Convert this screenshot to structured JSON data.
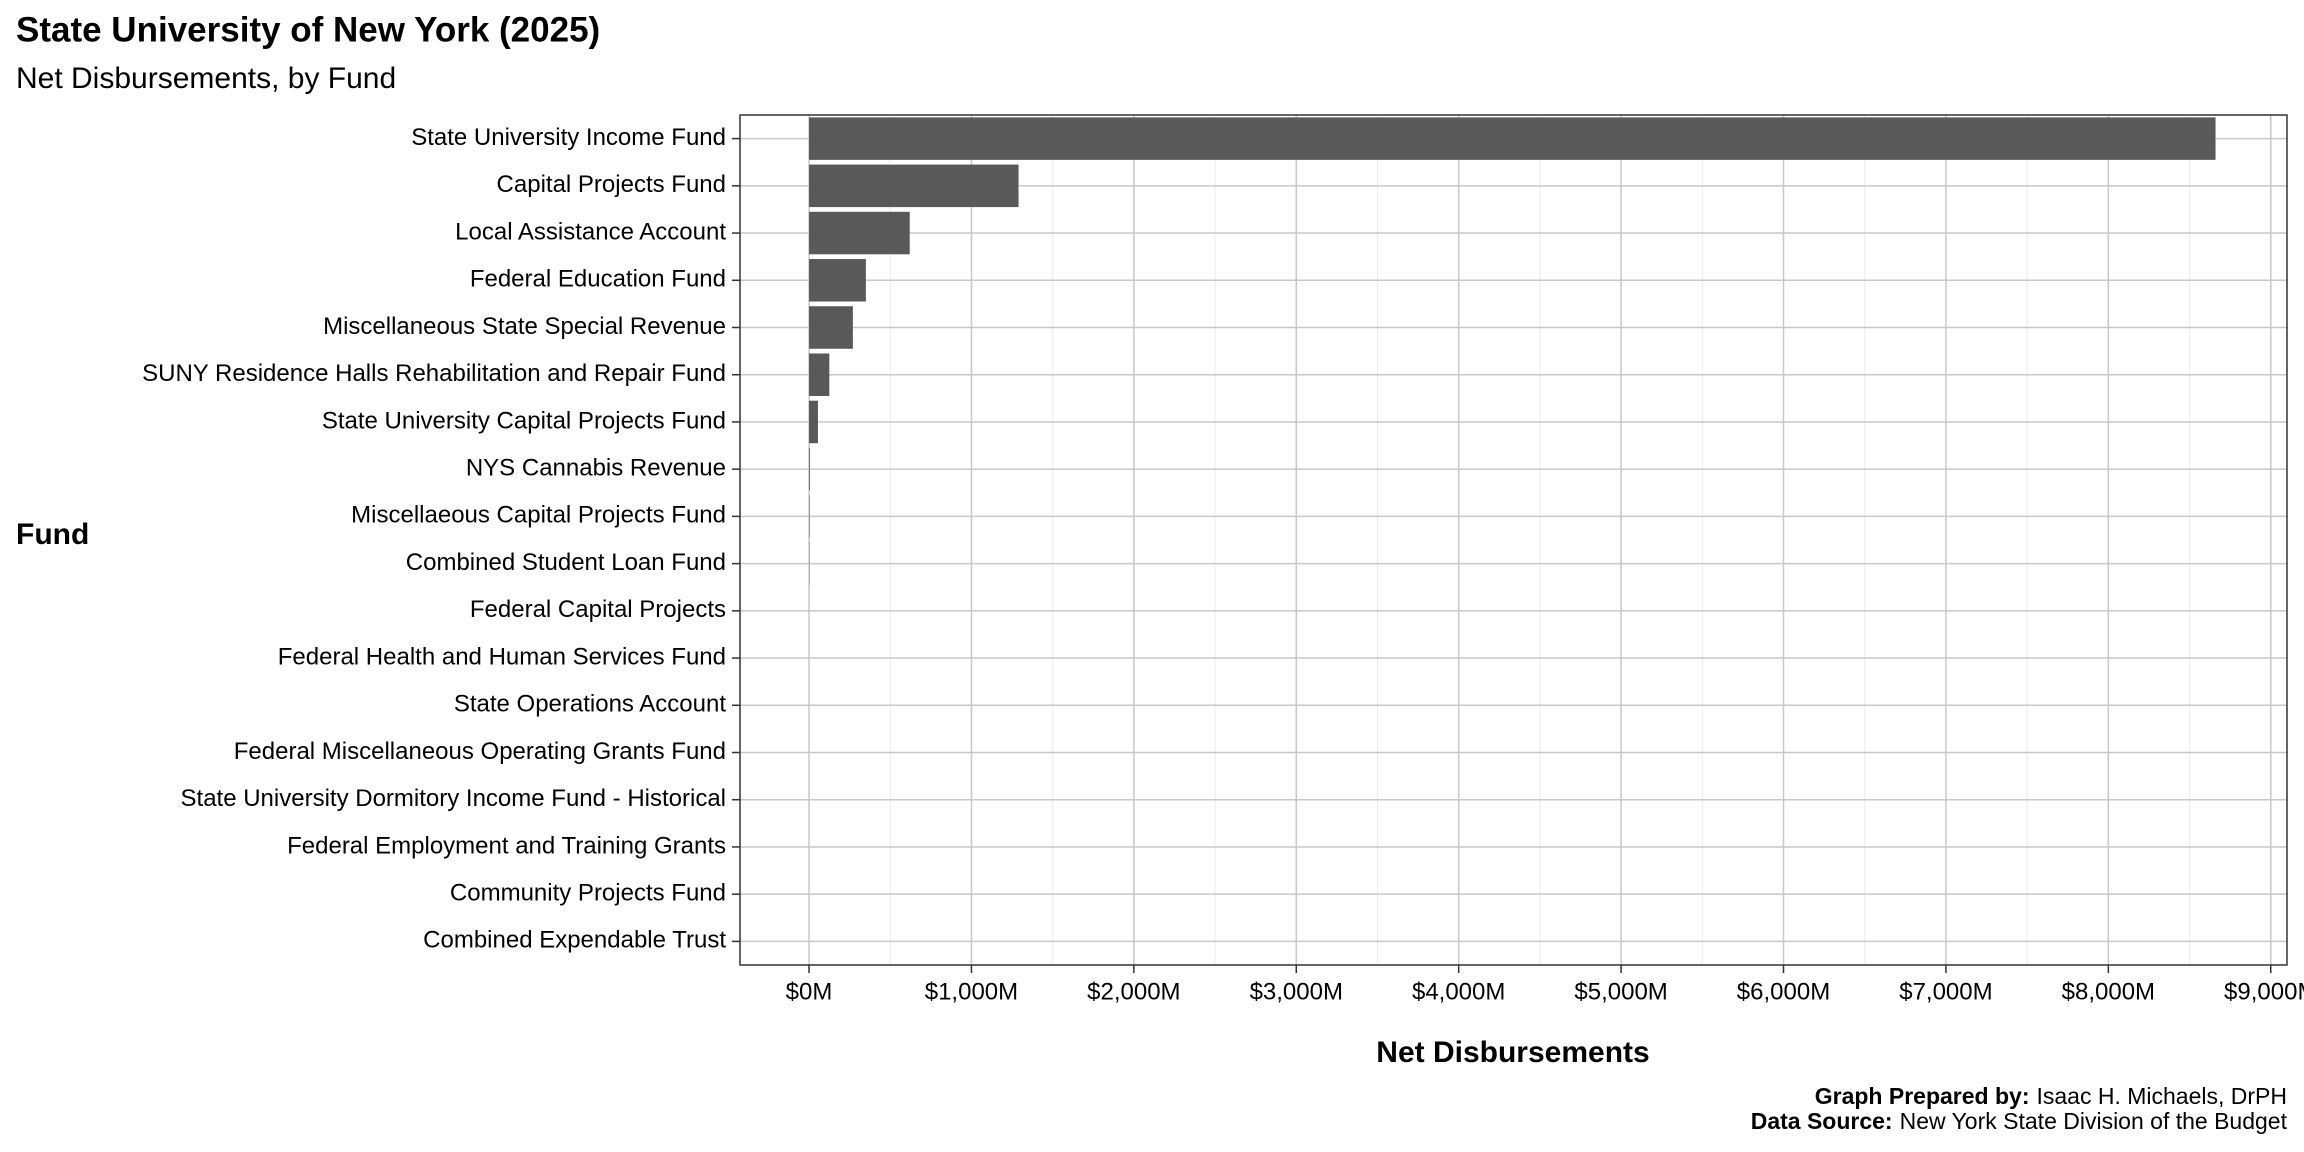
{
  "chart_data": {
    "type": "bar",
    "orientation": "horizontal",
    "title": "State University of New York (2025)",
    "subtitle": "Net Disbursements, by Fund",
    "x_label": "Net Disbursements",
    "y_label": "Fund",
    "categories": [
      "State University Income Fund",
      "Capital Projects Fund",
      "Local Assistance Account",
      "Federal Education Fund",
      "Miscellaneous State Special Revenue",
      "SUNY Residence Halls Rehabilitation and Repair Fund",
      "State University Capital Projects Fund",
      "NYS Cannabis Revenue",
      "Miscellaeous Capital Projects Fund",
      "Combined Student Loan Fund",
      "Federal Capital Projects",
      "Federal Health and Human Services Fund",
      "State Operations Account",
      "Federal Miscellaneous Operating Grants Fund",
      "State University Dormitory Income Fund - Historical",
      "Federal Employment and Training Grants",
      "Community Projects Fund",
      "Combined Expendable Trust"
    ],
    "values": [
      8660,
      1290,
      620,
      350,
      270,
      125,
      55,
      5,
      3,
      2,
      0,
      0,
      0,
      0,
      0,
      0,
      0,
      0
    ],
    "color": "#595959",
    "xlim": [
      -425,
      9100
    ],
    "xticks": [
      {
        "value": 0,
        "label": "$0M"
      },
      {
        "value": 1000,
        "label": "$1,000M"
      },
      {
        "value": 2000,
        "label": "$2,000M"
      },
      {
        "value": 3000,
        "label": "$3,000M"
      },
      {
        "value": 4000,
        "label": "$4,000M"
      },
      {
        "value": 5000,
        "label": "$5,000M"
      },
      {
        "value": 6000,
        "label": "$6,000M"
      },
      {
        "value": 7000,
        "label": "$7,000M"
      },
      {
        "value": 8000,
        "label": "$8,000M"
      },
      {
        "value": 9000,
        "label": "$9,000M"
      }
    ],
    "grid": true,
    "minor_grid": true,
    "caption": [
      {
        "label": "Graph Prepared by:",
        "text": "Isaac H. Michaels, DrPH"
      },
      {
        "label": "Data Source:",
        "text": "New York State Division of the Budget"
      }
    ]
  }
}
